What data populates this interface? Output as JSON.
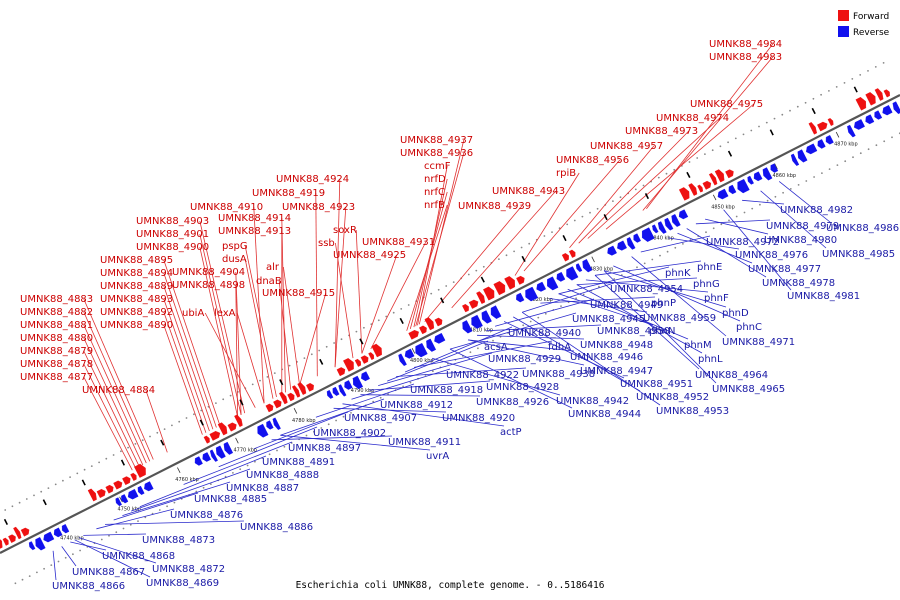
{
  "caption": "Escherichia coli UMNK88, complete genome. - 0..5186416",
  "legend": {
    "forward_label": "Forward",
    "reverse_label": "Reverse",
    "forward_color": "#ee1111",
    "reverse_color": "#1111ee"
  },
  "scale_labels": [
    "4740 kbp",
    "4750 kbp",
    "4760 kbp",
    "4770 kbp",
    "4780 kbp",
    "4790 kbp",
    "4800 kbp",
    "4810 kbp",
    "4820 kbp",
    "4830 kbp",
    "4840 kbp",
    "4850 kbp",
    "4860 kbp",
    "4870 kbp"
  ],
  "forward_genes": [
    "UMNK88_4877",
    "UMNK88_4878",
    "UMNK88_4879",
    "UMNK88_4880",
    "UMNK88_4881",
    "UMNK88_4882",
    "UMNK88_4883",
    "UMNK88_4884",
    "UMNK88_4889",
    "UMNK88_4890",
    "UMNK88_4892",
    "UMNK88_4893",
    "UMNK88_4894",
    "UMNK88_4895",
    "UMNK88_4898",
    "UMNK88_4900",
    "UMNK88_4901",
    "UMNK88_4903",
    "UMNK88_4904",
    "UMNK88_4910",
    "UMNK88_4913",
    "UMNK88_4914",
    "UMNK88_4915",
    "UMNK88_4919",
    "UMNK88_4923",
    "UMNK88_4924",
    "UMNK88_4925",
    "UMNK88_4931",
    "UMNK88_4936",
    "UMNK88_4937",
    "UMNK88_4939",
    "UMNK88_4943",
    "UMNK88_4956",
    "UMNK88_4957",
    "UMNK88_4973",
    "UMNK88_4974",
    "UMNK88_4975",
    "UMNK88_4983",
    "UMNK88_4984",
    "lexA",
    "ubiA",
    "dnaB",
    "alr",
    "dusA",
    "pspG",
    "ssb",
    "soxR",
    "nrfB",
    "nrfC",
    "nrfD",
    "ccmF",
    "rpiB"
  ],
  "reverse_genes": [
    "UMNK88_4866",
    "UMNK88_4867",
    "UMNK88_4868",
    "UMNK88_4869",
    "UMNK88_4872",
    "UMNK88_4873",
    "UMNK88_4876",
    "UMNK88_4885",
    "UMNK88_4886",
    "UMNK88_4887",
    "UMNK88_4888",
    "UMNK88_4891",
    "UMNK88_4897",
    "UMNK88_4902",
    "UMNK88_4907",
    "UMNK88_4911",
    "UMNK88_4912",
    "UMNK88_4918",
    "UMNK88_4920",
    "UMNK88_4922",
    "UMNK88_4926",
    "UMNK88_4928",
    "UMNK88_4929",
    "UMNK88_4938",
    "UMNK88_4940",
    "UMNK88_4942",
    "UMNK88_4944",
    "UMNK88_4945",
    "UMNK88_4946",
    "UMNK88_4947",
    "UMNK88_4948",
    "UMNK88_4949",
    "UMNK88_4950",
    "UMNK88_4951",
    "UMNK88_4952",
    "UMNK88_4953",
    "UMNK88_4954",
    "UMNK88_4959",
    "UMNK88_4964",
    "UMNK88_4965",
    "UMNK88_4971",
    "UMNK88_4972",
    "UMNK88_4976",
    "UMNK88_4977",
    "UMNK88_4978",
    "UMNK88_4979",
    "UMNK88_4980",
    "UMNK88_4981",
    "UMNK88_4982",
    "UMNK88_4985",
    "UMNK88_4986",
    "uvrA",
    "actP",
    "acsA",
    "fdhA",
    "phnK",
    "phnE",
    "phnP",
    "phnG",
    "phnF",
    "phnN",
    "phnD",
    "phnM",
    "phnC",
    "phnL"
  ]
}
